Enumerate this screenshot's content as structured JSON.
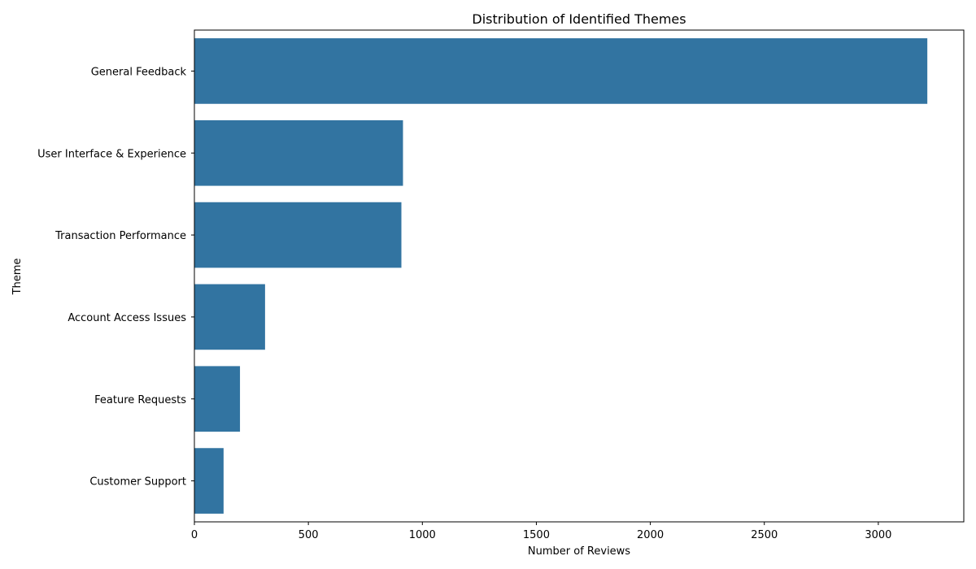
{
  "chart_data": {
    "type": "bar",
    "orientation": "horizontal",
    "title": "Distribution of Identified Themes",
    "xlabel": "Number of Reviews",
    "ylabel": "Theme",
    "categories": [
      "General Feedback",
      "User Interface & Experience",
      "Transaction Performance",
      "Account Access Issues",
      "Feature Requests",
      "Customer Support"
    ],
    "values": [
      3215,
      915,
      908,
      310,
      200,
      128
    ],
    "xlim": [
      0,
      3375
    ],
    "xticks": [
      0,
      500,
      1000,
      1500,
      2000,
      2500,
      3000
    ],
    "grid": false,
    "bar_color": "#3274a1"
  }
}
